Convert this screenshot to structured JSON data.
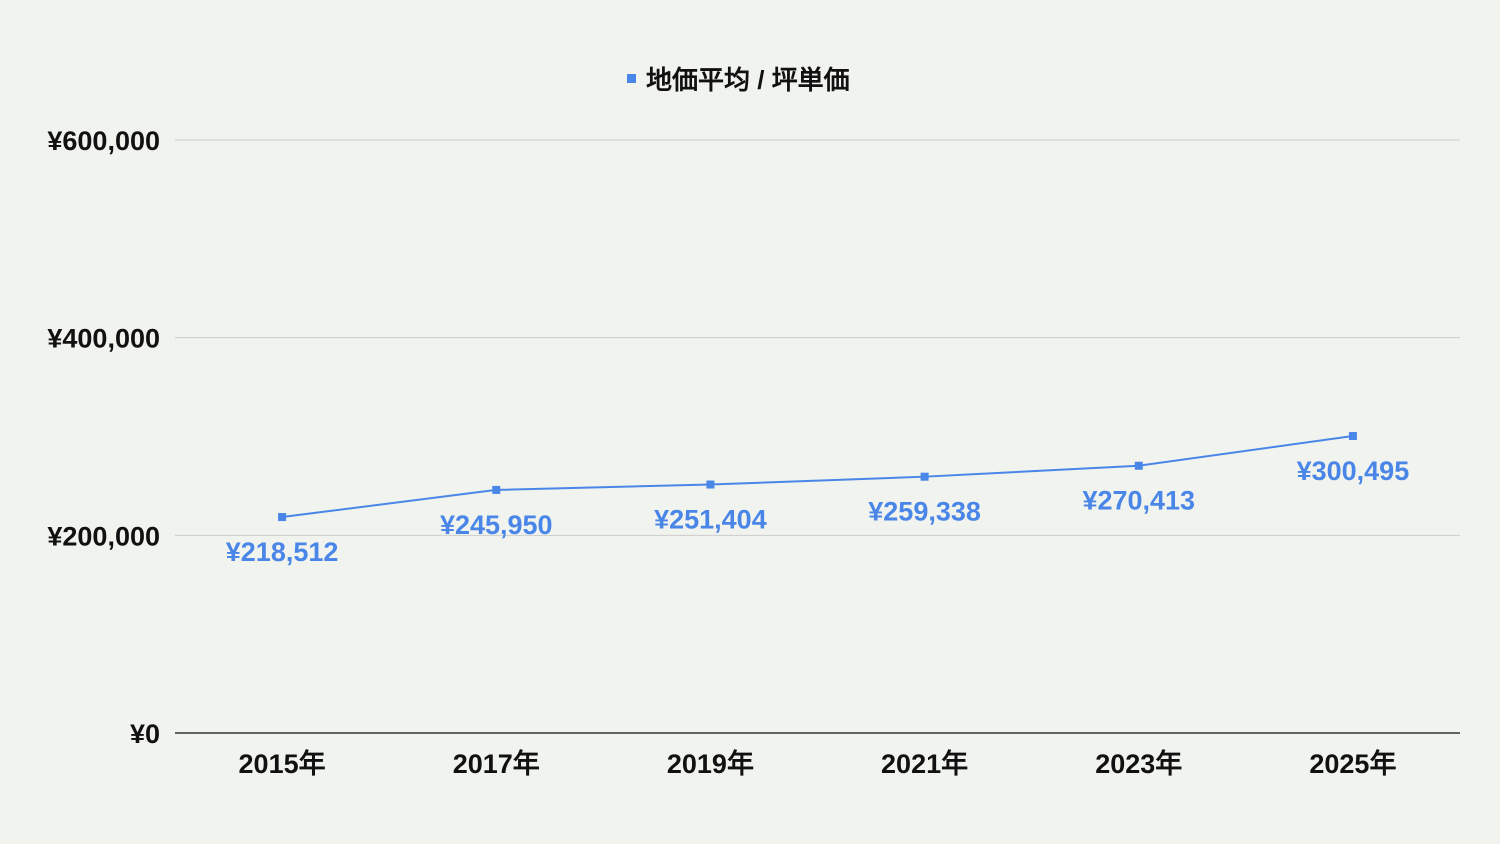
{
  "chart_data": {
    "type": "line",
    "categories": [
      "2015年",
      "2017年",
      "2019年",
      "2021年",
      "2023年",
      "2025年"
    ],
    "series": [
      {
        "name": "地価平均 / 坪単価",
        "values": [
          218512,
          245950,
          251404,
          259338,
          270413,
          300495
        ],
        "data_labels": [
          "¥218,512",
          "¥245,950",
          "¥251,404",
          "¥259,338",
          "¥270,413",
          "¥300,495"
        ],
        "color": "#4a86e8"
      }
    ],
    "ylim": [
      0,
      600000
    ],
    "y_ticks": [
      0,
      200000,
      400000,
      600000
    ],
    "y_tick_labels": [
      "¥0",
      "¥200,000",
      "¥400,000",
      "¥600,000"
    ],
    "grid": true,
    "legend": "top-center",
    "colors": {
      "background": "#f0f3ee",
      "grid": "#cccccc",
      "axis": "#333333",
      "text": "#111111",
      "series": "#4a86e8"
    }
  }
}
